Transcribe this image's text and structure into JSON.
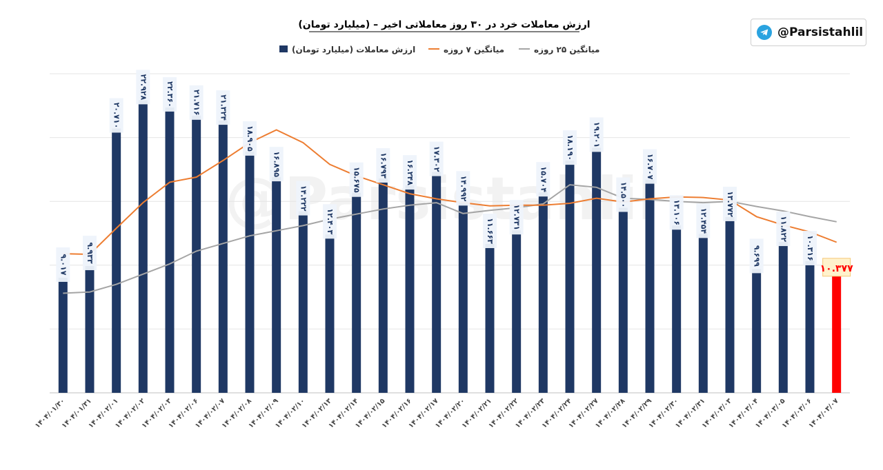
{
  "handle": "@Parsistahlil",
  "watermark": "@Parsistahlil",
  "icons": {
    "brand": "telegram-icon"
  },
  "chart_data": {
    "type": "bar",
    "title": "ارزش معاملات خرد در ۳۰ روز معاملاتی اخیر – (میلیارد تومان)",
    "xlabel": "",
    "ylabel": "",
    "ylim": [
      0,
      25
    ],
    "grid": true,
    "legend_position": "top-center",
    "categories": [
      "۱۴۰۴/۰۱/۳۰",
      "۱۴۰۴/۰۱/۳۱",
      "۱۴۰۴/۰۲/۰۱",
      "۱۴۰۴/۰۲/۰۲",
      "۱۴۰۴/۰۲/۰۳",
      "۱۴۰۴/۰۲/۰۶",
      "۱۴۰۴/۰۲/۰۷",
      "۱۴۰۴/۰۲/۰۸",
      "۱۴۰۴/۰۲/۰۹",
      "۱۴۰۴/۰۲/۱۰",
      "۱۴۰۴/۰۲/۱۳",
      "۱۴۰۴/۰۲/۱۴",
      "۱۴۰۴/۰۲/۱۵",
      "۱۴۰۴/۰۲/۱۶",
      "۱۴۰۴/۰۲/۱۷",
      "۱۴۰۴/۰۲/۲۰",
      "۱۴۰۴/۰۲/۲۱",
      "۱۴۰۴/۰۲/۲۲",
      "۱۴۰۴/۰۲/۲۳",
      "۱۴۰۴/۰۲/۲۴",
      "۱۴۰۴/۰۲/۲۷",
      "۱۴۰۴/۰۲/۲۸",
      "۱۴۰۴/۰۲/۲۹",
      "۱۴۰۴/۰۲/۳۰",
      "۱۴۰۴/۰۲/۳۱",
      "۱۴۰۴/۰۳/۰۳",
      "۱۴۰۴/۰۳/۰۴",
      "۱۴۰۴/۰۳/۰۵",
      "۱۴۰۴/۰۳/۰۶",
      "۱۴۰۴/۰۳/۰۷"
    ],
    "value_labels": [
      "۹.۰۱۷",
      "۹.۹۳۳",
      "۲۰.۷۱۰",
      "۲۲.۹۲۸",
      "۲۲.۳۶۰",
      "۲۱.۷۱۶",
      "۲۱.۳۲۴",
      "۱۸.۹۰۵",
      "۱۶.۸۹۵",
      "۱۴.۲۲۲",
      "۱۲.۴۰۳",
      "۱۵.۶۷۵",
      "۱۶.۷۹۳",
      "۱۶.۲۴۸",
      "۱۷.۳۰۲",
      "۱۴.۹۹۲",
      "۱۱.۶۶۳",
      "۱۲.۷۳۱",
      "۱۵.۷۰۴",
      "۱۸.۱۹۰",
      "۱۹.۲۰۱",
      "۱۴.۵۰۰",
      "۱۶.۷۰۷",
      "۱۳.۱۰۶",
      "۱۲.۴۵۴",
      "۱۳.۷۷۲",
      "۹.۶۹۹",
      "۱۱.۸۲۲",
      "۱۰.۳۱۶",
      "۱۰.۳۷۷"
    ],
    "series": [
      {
        "name": "ارزش معاملات (میلیارد تومان)",
        "type": "bar",
        "color": "#1f3864",
        "highlight_last_color": "#ff0000",
        "values": [
          9.017,
          9.933,
          20.71,
          22.928,
          22.36,
          21.716,
          21.324,
          18.905,
          16.895,
          14.222,
          12.403,
          15.675,
          16.793,
          16.248,
          17.302,
          14.992,
          11.663,
          12.731,
          15.704,
          18.19,
          19.201,
          14.5,
          16.707,
          13.106,
          12.454,
          13.772,
          9.699,
          11.822,
          10.316,
          10.377
        ]
      },
      {
        "name": "میانگین ۷ روزه",
        "type": "line",
        "color": "#ed7d31",
        "values": [
          10.9,
          10.85,
          12.9,
          14.9,
          16.5,
          16.9,
          18.2,
          19.6,
          20.6,
          19.6,
          17.9,
          17.0,
          16.3,
          15.6,
          15.2,
          14.9,
          14.65,
          14.7,
          14.7,
          14.85,
          15.25,
          14.95,
          15.2,
          15.35,
          15.3,
          15.1,
          13.8,
          13.15,
          12.6,
          11.8
        ]
      },
      {
        "name": "میانگین ۲۵ روزه",
        "type": "line",
        "color": "#a5a5a5",
        "values": [
          7.8,
          7.9,
          8.5,
          9.3,
          10.1,
          11.1,
          11.7,
          12.3,
          12.7,
          13.1,
          13.6,
          14.0,
          14.4,
          14.7,
          14.9,
          14.05,
          14.3,
          14.5,
          14.8,
          16.3,
          16.1,
          15.25,
          15.15,
          15.0,
          14.9,
          15.0,
          14.6,
          14.25,
          13.8,
          13.4
        ]
      }
    ]
  }
}
